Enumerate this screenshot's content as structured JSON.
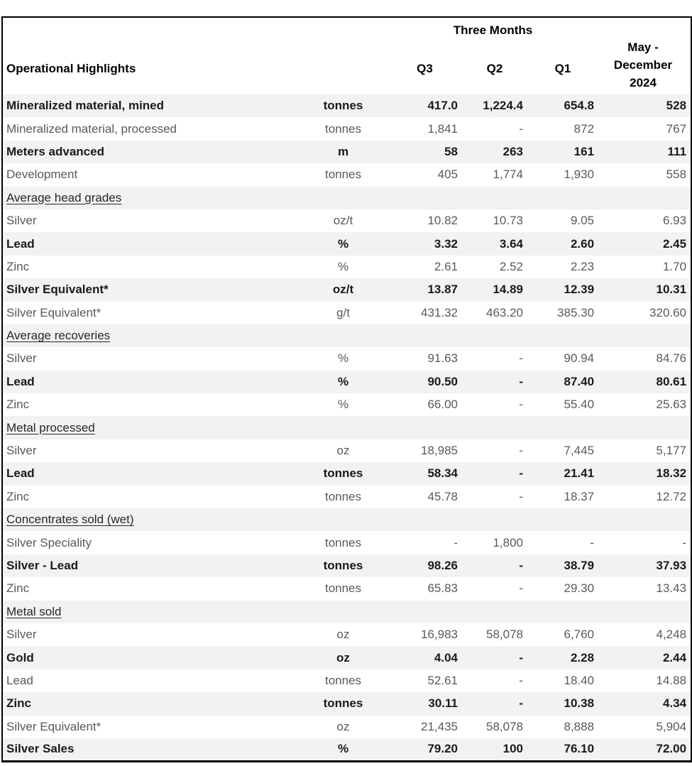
{
  "colors": {
    "row_band": "#f2f2f2",
    "border": "#000000",
    "muted_text": "#595959",
    "strong_text": "#1a1a1a"
  },
  "table": {
    "header": {
      "row_title": "Operational Highlights",
      "group_label": "Three Months",
      "quarters": [
        "Q3",
        "Q2",
        "Q1"
      ],
      "period_label": "May -\nDecember\n2024"
    },
    "rows": [
      {
        "type": "data",
        "label": "Mineralized material, mined",
        "unit": "tonnes",
        "q3": "417.0",
        "q2": "1,224.4",
        "q1": "654.8",
        "period": "528"
      },
      {
        "type": "data",
        "label": "Mineralized material, processed",
        "unit": "tonnes",
        "q3": "1,841",
        "q2": "-",
        "q1": "872",
        "period": "767"
      },
      {
        "type": "data",
        "label": "Meters advanced",
        "unit": "m",
        "q3": "58",
        "q2": "263",
        "q1": "161",
        "period": "111"
      },
      {
        "type": "data",
        "label": "Development",
        "unit": "tonnes",
        "q3": "405",
        "q2": "1,774",
        "q1": "1,930",
        "period": "558"
      },
      {
        "type": "section",
        "label": "Average head grades"
      },
      {
        "type": "data",
        "label": "Silver",
        "unit": "oz/t",
        "q3": "10.82",
        "q2": "10.73",
        "q1": "9.05",
        "period": "6.93"
      },
      {
        "type": "data",
        "label": "Lead",
        "unit": "%",
        "q3": "3.32",
        "q2": "3.64",
        "q1": "2.60",
        "period": "2.45"
      },
      {
        "type": "data",
        "label": "Zinc",
        "unit": "%",
        "q3": "2.61",
        "q2": "2.52",
        "q1": "2.23",
        "period": "1.70"
      },
      {
        "type": "data",
        "label": "Silver Equivalent*",
        "unit": "oz/t",
        "q3": "13.87",
        "q2": "14.89",
        "q1": "12.39",
        "period": "10.31"
      },
      {
        "type": "data",
        "label": "Silver Equivalent*",
        "unit": "g/t",
        "q3": "431.32",
        "q2": "463.20",
        "q1": "385.30",
        "period": "320.60"
      },
      {
        "type": "section",
        "label": "Average recoveries"
      },
      {
        "type": "data",
        "label": "Silver",
        "unit": "%",
        "q3": "91.63",
        "q2": "-",
        "q1": "90.94",
        "period": "84.76"
      },
      {
        "type": "data",
        "label": "Lead",
        "unit": "%",
        "q3": "90.50",
        "q2": "-",
        "q1": "87.40",
        "period": "80.61"
      },
      {
        "type": "data",
        "label": "Zinc",
        "unit": "%",
        "q3": "66.00",
        "q2": "-",
        "q1": "55.40",
        "period": "25.63"
      },
      {
        "type": "section",
        "label": "Metal processed"
      },
      {
        "type": "data",
        "label": "Silver",
        "unit": "oz",
        "q3": "18,985",
        "q2": "-",
        "q1": "7,445",
        "period": "5,177"
      },
      {
        "type": "data",
        "label": "Lead",
        "unit": "tonnes",
        "q3": "58.34",
        "q2": "-",
        "q1": "21.41",
        "period": "18.32"
      },
      {
        "type": "data",
        "label": "Zinc",
        "unit": "tonnes",
        "q3": "45.78",
        "q2": "-",
        "q1": "18.37",
        "period": "12.72"
      },
      {
        "type": "section",
        "label": "Concentrates sold (wet)"
      },
      {
        "type": "data",
        "label": "Silver Speciality",
        "unit": "tonnes",
        "q3": "-",
        "q2": "1,800",
        "q1": "-",
        "period": "-"
      },
      {
        "type": "data",
        "label": "Silver - Lead",
        "unit": "tonnes",
        "q3": "98.26",
        "q2": "-",
        "q1": "38.79",
        "period": "37.93"
      },
      {
        "type": "data",
        "label": "Zinc",
        "unit": "tonnes",
        "q3": "65.83",
        "q2": "-",
        "q1": "29.30",
        "period": "13.43"
      },
      {
        "type": "section",
        "label": "Metal sold"
      },
      {
        "type": "data",
        "label": "Silver",
        "unit": "oz",
        "q3": "16,983",
        "q2": "58,078",
        "q1": "6,760",
        "period": "4,248"
      },
      {
        "type": "data",
        "label": "Gold",
        "unit": "oz",
        "q3": "4.04",
        "q2": "-",
        "q1": "2.28",
        "period": "2.44"
      },
      {
        "type": "data",
        "label": "Lead",
        "unit": "tonnes",
        "q3": "52.61",
        "q2": "-",
        "q1": "18.40",
        "period": "14.88"
      },
      {
        "type": "data",
        "label": "Zinc",
        "unit": "tonnes",
        "q3": "30.11",
        "q2": "-",
        "q1": "10.38",
        "period": "4.34"
      },
      {
        "type": "data",
        "label": "Silver Equivalent*",
        "unit": "oz",
        "q3": "21,435",
        "q2": "58,078",
        "q1": "8,888",
        "period": "5,904"
      },
      {
        "type": "data",
        "label": "Silver Sales",
        "unit": "%",
        "q3": "79.20",
        "q2": "100",
        "q1": "76.10",
        "period": "72.00"
      }
    ]
  }
}
